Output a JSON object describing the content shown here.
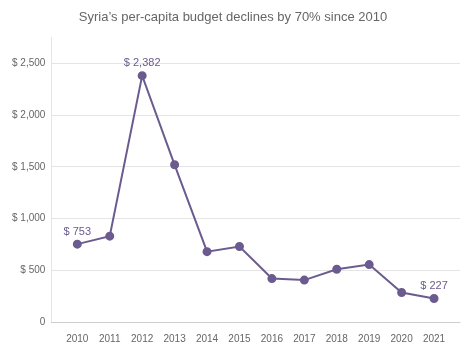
{
  "chart_data": {
    "type": "line",
    "title": "Syria’s per-capita budget declines by 70% since 2010",
    "x": [
      2010,
      2011,
      2012,
      2013,
      2014,
      2015,
      2016,
      2017,
      2018,
      2019,
      2020,
      2021
    ],
    "values": [
      753,
      830,
      2382,
      1520,
      680,
      730,
      420,
      405,
      510,
      555,
      285,
      227
    ],
    "color": "#6b5b8e",
    "marker": "circle",
    "xlim": [
      2009.2,
      2021.8
    ],
    "xticks": [
      2010,
      2011,
      2012,
      2013,
      2014,
      2015,
      2016,
      2017,
      2018,
      2019,
      2020,
      2021
    ],
    "ylim": [
      0,
      2750
    ],
    "yticks": [
      0,
      {
        "value": 500,
        "label": "$ 500"
      },
      {
        "value": 1000,
        "label": "$ 1,000"
      },
      {
        "value": 1500,
        "label": "$ 1,500"
      },
      {
        "value": 2000,
        "label": "$ 2,000"
      },
      {
        "value": 2500,
        "label": "$ 2,500"
      }
    ],
    "grid": true,
    "annotations": [
      {
        "text": "$ 753",
        "x": 2010,
        "y": 753
      },
      {
        "text": "$ 2,382",
        "x": 2012,
        "y": 2382
      },
      {
        "text": "$ 227",
        "x": 2021,
        "y": 227
      }
    ]
  }
}
